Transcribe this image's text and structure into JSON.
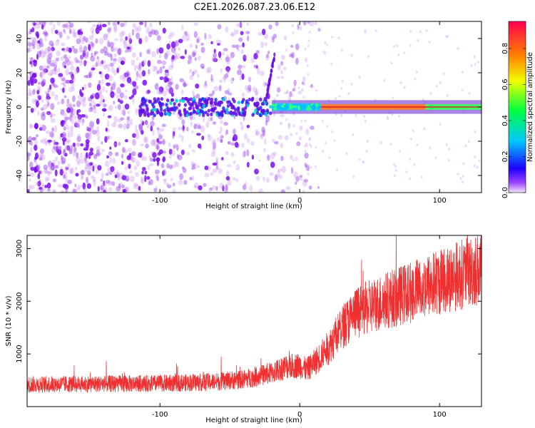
{
  "figure_title": "C2E1.2026.087.23.06.E12",
  "chart_data": [
    {
      "type": "heatmap",
      "title": "C2E1.2026.087.23.06.E12",
      "xlabel": "Height of straight line (km)",
      "ylabel": "Frequency (Hz)",
      "xlim": [
        -195,
        130
      ],
      "ylim": [
        -50,
        50
      ],
      "x_ticks": [
        -100,
        0,
        100
      ],
      "x_tick_labels": [
        "-100",
        "0",
        "100"
      ],
      "y_ticks": [
        -40,
        -20,
        0,
        20,
        40
      ],
      "y_tick_labels": [
        "-40",
        "-20",
        "0",
        "20",
        "40"
      ],
      "colorbar": {
        "label": "Normalized spectral amplitude",
        "range": [
          0.0,
          0.95
        ],
        "ticks": [
          0.0,
          0.2,
          0.4,
          0.6,
          0.8
        ],
        "tick_labels": [
          "0.0",
          "0.2",
          "0.4",
          "0.6",
          "0.8"
        ],
        "colormap": [
          "#f0e0f8",
          "#8000ff",
          "#0000ff",
          "#00c0ff",
          "#00ff80",
          "#ffff00",
          "#ff8000",
          "#ff0040"
        ]
      },
      "description_values": {
        "noise_region_x": [
          -195,
          -20
        ],
        "signal_band_start_x": -20,
        "signal_frequency_hz": 0,
        "peak_band_x": [
          15,
          90
        ]
      }
    },
    {
      "type": "line",
      "xlabel": "Height of straight line (km)",
      "ylabel": "SNR (10 * v/v)",
      "xlim": [
        -195,
        130
      ],
      "ylim": [
        0,
        3250
      ],
      "x_ticks": [
        -100,
        0,
        100
      ],
      "x_tick_labels": [
        "-100",
        "0",
        "100"
      ],
      "y_ticks": [
        1000,
        2000,
        3000
      ],
      "y_tick_labels": [
        "1000",
        "2000",
        "3000"
      ],
      "series": [
        {
          "name": "SNR",
          "color": "#f03030",
          "trend_x": [
            -195,
            -150,
            -100,
            -60,
            -40,
            -20,
            -10,
            0,
            5,
            10,
            20,
            30,
            40,
            60,
            80,
            100,
            120,
            130
          ],
          "trend_y": [
            420,
            430,
            440,
            470,
            520,
            640,
            760,
            780,
            700,
            820,
            1100,
            1500,
            1780,
            2000,
            2180,
            2380,
            2550,
            2620
          ]
        }
      ]
    }
  ]
}
